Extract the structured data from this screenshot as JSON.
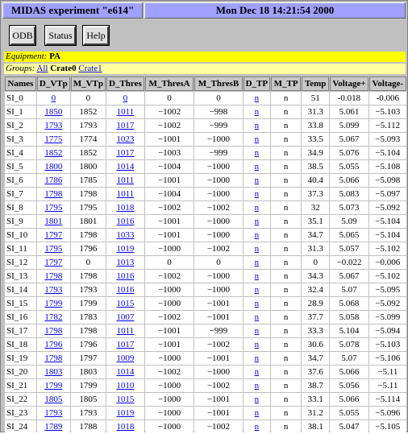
{
  "header": {
    "title": "MIDAS experiment \"e614\"",
    "datetime": "Mon Dec 18 14:21:54 2000"
  },
  "buttons": [
    "ODB",
    "Status",
    "Help"
  ],
  "equipment": {
    "label": "Equipment:",
    "value": "PA"
  },
  "groups": {
    "label": "Groups:",
    "items": [
      "All",
      "Crate0",
      "Crate1"
    ],
    "current": "Crate0"
  },
  "columns": [
    "Names",
    "D_VTp",
    "M_VTp",
    "D_Thres",
    "M_ThresA",
    "M_ThresB",
    "D_TP",
    "M_TP",
    "Temp",
    "Voltage+",
    "Voltage-"
  ],
  "rows": [
    [
      "SI_0",
      "0",
      "0",
      "0",
      "0",
      "0",
      "n",
      "n",
      "51",
      "-0.018",
      "-0.006"
    ],
    [
      "SI_1",
      "1850",
      "1852",
      "1011",
      "−1002",
      "−998",
      "n",
      "n",
      "31.3",
      "5.061",
      "−5.103"
    ],
    [
      "SI_2",
      "1793",
      "1793",
      "1017",
      "−1002",
      "−999",
      "n",
      "n",
      "33.8",
      "5.099",
      "−5.112"
    ],
    [
      "SI_3",
      "1775",
      "1774",
      "1023",
      "−1001",
      "−1000",
      "n",
      "n",
      "33.5",
      "5.067",
      "−5.093"
    ],
    [
      "SI_4",
      "1852",
      "1852",
      "1017",
      "−1003",
      "−999",
      "n",
      "n",
      "34.9",
      "5.076",
      "−5.104"
    ],
    [
      "SI_5",
      "1800",
      "1800",
      "1014",
      "−1004",
      "−1000",
      "n",
      "n",
      "38.5",
      "5.055",
      "−5.108"
    ],
    [
      "SI_6",
      "1786",
      "1785",
      "1011",
      "−1001",
      "−1000",
      "n",
      "n",
      "40.4",
      "5.066",
      "−5.098"
    ],
    [
      "SI_7",
      "1798",
      "1798",
      "1011",
      "−1004",
      "−1000",
      "n",
      "n",
      "37.3",
      "5.083",
      "−5.097"
    ],
    [
      "SI_8",
      "1795",
      "1795",
      "1018",
      "−1002",
      "−1002",
      "n",
      "n",
      "32",
      "5.073",
      "−5.092"
    ],
    [
      "SI_9",
      "1801",
      "1801",
      "1016",
      "−1001",
      "−1000",
      "n",
      "n",
      "35.1",
      "5.09",
      "−5.104"
    ],
    [
      "SI_10",
      "1797",
      "1798",
      "1033",
      "−1001",
      "−1000",
      "n",
      "n",
      "34.7",
      "5.065",
      "−5.104"
    ],
    [
      "SI_11",
      "1795",
      "1796",
      "1019",
      "−1000",
      "−1002",
      "n",
      "n",
      "31.3",
      "5.057",
      "−5.102"
    ],
    [
      "SI_12",
      "1797",
      "0",
      "1013",
      "0",
      "0",
      "n",
      "n",
      "0",
      "−0.022",
      "−0.006"
    ],
    [
      "SI_13",
      "1798",
      "1798",
      "1016",
      "−1002",
      "−1000",
      "n",
      "n",
      "34.3",
      "5.067",
      "−5.102"
    ],
    [
      "SI_14",
      "1793",
      "1793",
      "1016",
      "−1000",
      "−1000",
      "n",
      "n",
      "32.4",
      "5.07",
      "−5.095"
    ],
    [
      "SI_15",
      "1799",
      "1799",
      "1015",
      "−1000",
      "−1001",
      "n",
      "n",
      "28.9",
      "5.068",
      "−5.092"
    ],
    [
      "SI_16",
      "1782",
      "1783",
      "1007",
      "−1002",
      "−1001",
      "n",
      "n",
      "37.7",
      "5.058",
      "−5.099"
    ],
    [
      "SI_17",
      "1798",
      "1798",
      "1011",
      "−1001",
      "−999",
      "n",
      "n",
      "33.3",
      "5.104",
      "−5.094"
    ],
    [
      "SI_18",
      "1796",
      "1796",
      "1017",
      "−1001",
      "−1002",
      "n",
      "n",
      "30.6",
      "5.078",
      "−5.103"
    ],
    [
      "SI_19",
      "1798",
      "1797",
      "1009",
      "−1000",
      "−1001",
      "n",
      "n",
      "34.7",
      "5.07",
      "−5.106"
    ],
    [
      "SI_20",
      "1803",
      "1803",
      "1014",
      "−1002",
      "−1000",
      "n",
      "n",
      "37.6",
      "5.066",
      "−5.11"
    ],
    [
      "SI_21",
      "1799",
      "1799",
      "1010",
      "−1000",
      "−1002",
      "n",
      "n",
      "38.7",
      "5.056",
      "−5.11"
    ],
    [
      "SI_22",
      "1805",
      "1805",
      "1015",
      "−1000",
      "−1001",
      "n",
      "n",
      "33.1",
      "5.066",
      "−5.114"
    ],
    [
      "SI_23",
      "1793",
      "1793",
      "1019",
      "−1000",
      "−1001",
      "n",
      "n",
      "31.2",
      "5.055",
      "−5.096"
    ],
    [
      "SI_24",
      "1789",
      "1788",
      "1018",
      "−1000",
      "−1002",
      "n",
      "n",
      "38.1",
      "5.047",
      "−5.105"
    ]
  ],
  "link_columns": [
    1,
    3,
    6
  ],
  "colors": {
    "title_bar": "#a0a0ff",
    "equipment_bar": "#ffff00",
    "groups_bar": "#ffffa0",
    "background": "#c0c0c0",
    "link": "#0000ee"
  }
}
